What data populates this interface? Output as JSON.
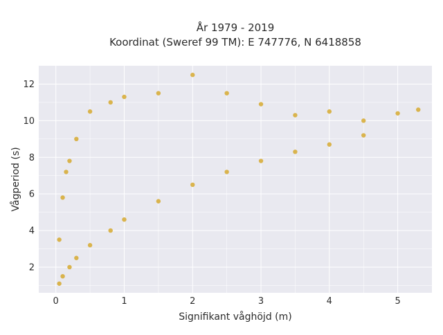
{
  "chart_data": {
    "type": "scatter",
    "title_lines": [
      "År 1979 - 2019",
      "Koordinat (Sweref 99 TM): E 747776, N 6418858"
    ],
    "xlabel": "Signifikant våghöjd (m)",
    "ylabel": "Vågperiod (s)",
    "xlim": [
      -0.25,
      5.5
    ],
    "ylim": [
      0.6,
      13.0
    ],
    "xticks": [
      0,
      1,
      2,
      3,
      4,
      5
    ],
    "yticks": [
      2,
      4,
      6,
      8,
      10,
      12
    ],
    "grid": true,
    "legend": "none",
    "colors": {
      "marker": "#d4a523",
      "plot_bg": "#e9e9f0",
      "grid": "#ffffff"
    },
    "series": [
      {
        "values": [
          [
            0.05,
            1.1
          ],
          [
            0.1,
            1.5
          ],
          [
            0.2,
            2.0
          ],
          [
            0.3,
            2.5
          ],
          [
            0.5,
            3.2
          ],
          [
            0.8,
            4.0
          ],
          [
            1.0,
            4.6
          ],
          [
            1.5,
            5.6
          ],
          [
            2.0,
            6.5
          ],
          [
            2.5,
            7.2
          ],
          [
            3.0,
            7.8
          ],
          [
            3.5,
            8.3
          ],
          [
            4.0,
            8.7
          ],
          [
            4.5,
            9.2
          ],
          [
            0.2,
            7.8
          ],
          [
            0.3,
            9.0
          ],
          [
            0.5,
            10.5
          ],
          [
            0.8,
            11.0
          ],
          [
            1.0,
            11.3
          ],
          [
            1.5,
            11.5
          ],
          [
            2.0,
            12.5
          ],
          [
            2.5,
            11.5
          ],
          [
            3.0,
            10.9
          ],
          [
            3.5,
            10.3
          ],
          [
            4.0,
            10.5
          ],
          [
            4.5,
            10.0
          ],
          [
            5.0,
            10.4
          ],
          [
            5.3,
            10.6
          ],
          [
            0.05,
            3.5
          ],
          [
            0.1,
            5.8
          ],
          [
            0.15,
            7.2
          ]
        ]
      }
    ]
  }
}
